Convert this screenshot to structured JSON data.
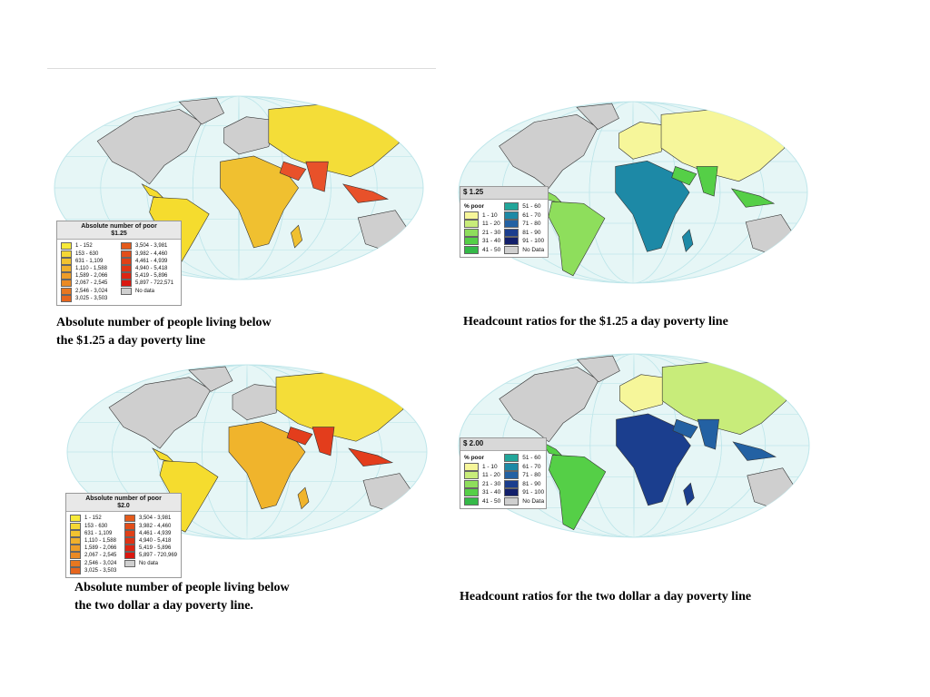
{
  "colors": {
    "ocean": "#e6f6f6",
    "graticule": "#bfe6ea",
    "no_data": "#cfcfcf",
    "border": "#333333"
  },
  "abs_legend": {
    "left_items": [
      "1 - 152",
      "153 - 630",
      "631 - 1,109",
      "1,110 - 1,588",
      "1,589 - 2,066",
      "2,067 - 2,545",
      "2,546 - 3,024",
      "3,025 - 3,503"
    ],
    "right_items": [
      "3,504 - 3,981",
      "3,982 - 4,460",
      "4,461 - 4,939",
      "4,940 - 5,418",
      "5,419 - 5,896"
    ],
    "left_colors": [
      "#f7ea3a",
      "#f5d735",
      "#f2c330",
      "#f0b02c",
      "#ee9d28",
      "#eb8a24",
      "#e87720",
      "#e6651d"
    ],
    "right_colors": [
      "#e45a1b",
      "#e24d19",
      "#e04017",
      "#de3315",
      "#dc2512",
      "#da1810",
      "#cfcfcf"
    ]
  },
  "hc_legend": {
    "unit": "% poor",
    "left_items": [
      "1 - 10",
      "11 - 20",
      "21 - 30",
      "31 - 40",
      "41 - 50"
    ],
    "right_items": [
      "51 - 60",
      "61 - 70",
      "71 - 80",
      "81 - 90",
      "91 - 100",
      "No Data"
    ],
    "left_colors": [
      "#f6f69a",
      "#c8ec7a",
      "#8ede5c",
      "#55cf47",
      "#35b948"
    ],
    "right_colors": [
      "#22a69a",
      "#1d89a6",
      "#2361a3",
      "#1b3e8e",
      "#121f6b",
      "#cfcfcf"
    ]
  },
  "maps": [
    {
      "legend_title_line1": "Absolute number of poor",
      "legend_title_line2": "$1.25",
      "extra_range": "5,897 - 722,571",
      "no_data_label": "No data",
      "caption_line1": "Absolute number of people living below",
      "caption_line2": "the $1.25 a day poverty line"
    },
    {
      "legend_title": "$ 1.25",
      "no_data_label": "No Data",
      "caption": "Headcount ratios for the $1.25 a day poverty line"
    },
    {
      "legend_title_line1": "Absolute number of poor",
      "legend_title_line2": "$2.0",
      "extra_range": "5,897 - 720,969",
      "no_data_label": "No data",
      "caption_line1": "Absolute number of people living below",
      "caption_line2": "the two dollar a day poverty line."
    },
    {
      "legend_title": "$ 2.00",
      "no_data_label": "No Data",
      "caption": "Headcount ratios for the two dollar a day poverty line"
    }
  ]
}
